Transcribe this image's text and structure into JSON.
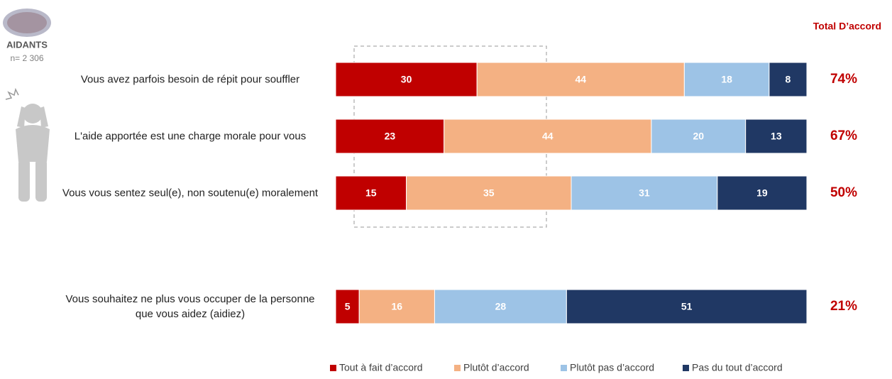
{
  "chart_data": {
    "type": "stacked-bar-horizontal",
    "header": {
      "title": "AIDANTS",
      "subtitle": "n= 2 306"
    },
    "categories": [
      "Vous avez parfois besoin de répit pour souffler",
      "L'aide apportée est une charge morale pour vous",
      "Vous vous sentez seul(e), non soutenu(e) moralement",
      "Vous souhaitez ne plus vous occuper de la personne que vous aidez (aidiez)"
    ],
    "series": [
      {
        "name": "Tout à fait d’accord",
        "color": "#c00000",
        "values": [
          30,
          23,
          15,
          5
        ]
      },
      {
        "name": "Plutôt d’accord",
        "color": "#f4b183",
        "values": [
          44,
          44,
          35,
          16
        ]
      },
      {
        "name": "Plutôt pas d’accord",
        "color": "#9dc3e6",
        "values": [
          18,
          20,
          31,
          28
        ]
      },
      {
        "name": "Pas du tout d’accord",
        "color": "#203864",
        "values": [
          8,
          13,
          19,
          51
        ]
      }
    ],
    "xlim": [
      0,
      100
    ],
    "totals": {
      "title": "Total D’accord",
      "color": "#c00000",
      "values": [
        74,
        67,
        50,
        21
      ],
      "value_labels": [
        "74%",
        "67%",
        "50%",
        "21%"
      ]
    }
  }
}
